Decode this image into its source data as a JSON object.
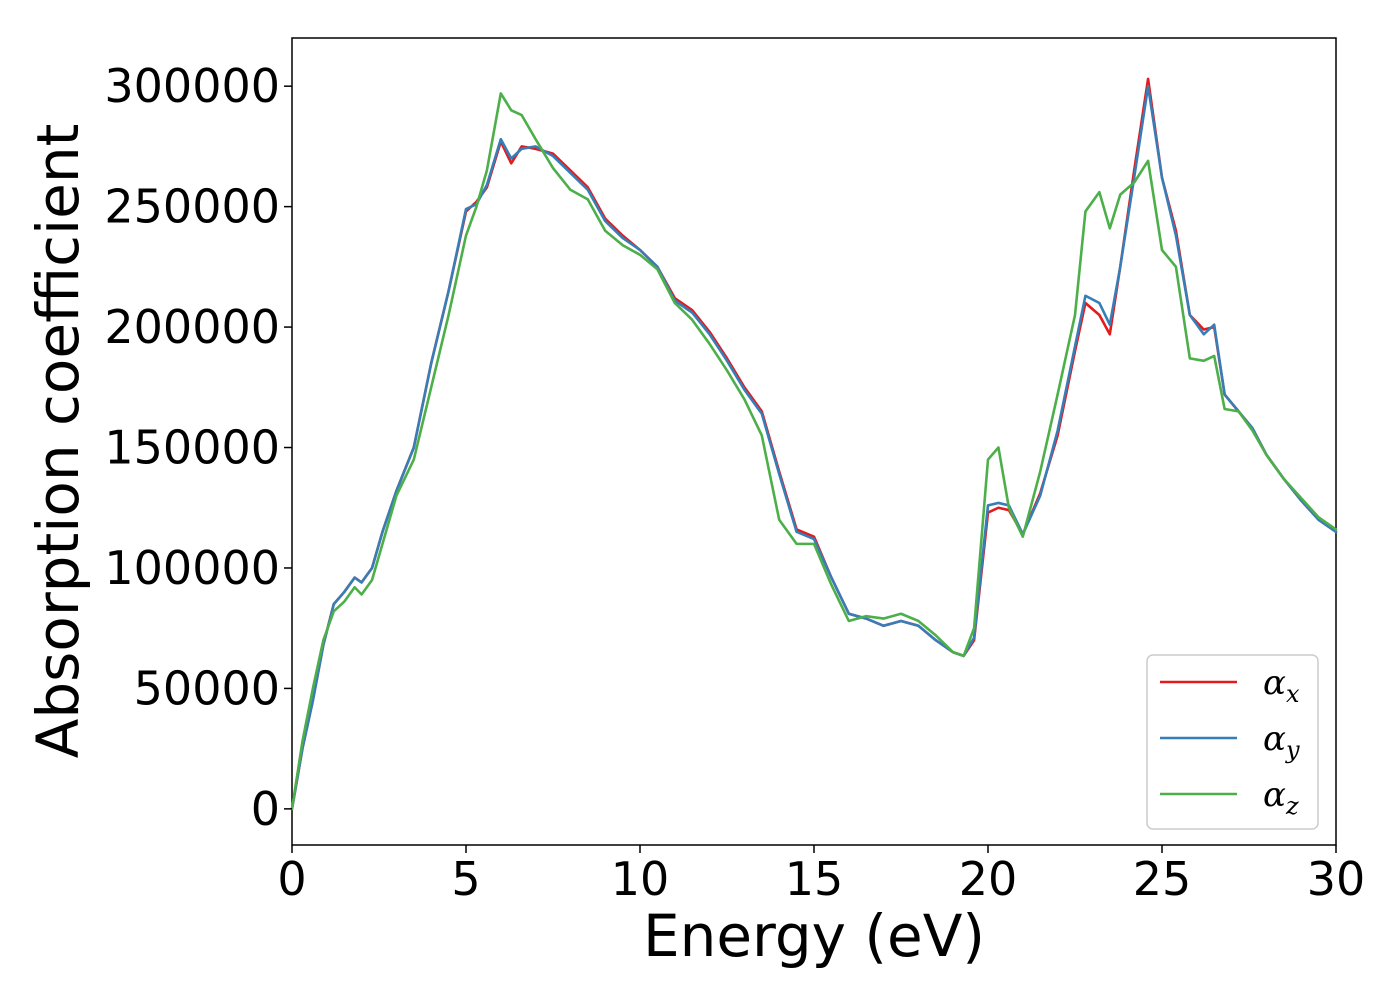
{
  "chart_data": {
    "type": "line",
    "title": "",
    "xlabel": "Energy (eV)",
    "ylabel": "Absorption coefficient",
    "xlim": [
      0,
      30
    ],
    "ylim": [
      -15000,
      320000
    ],
    "xticks": [
      0,
      5,
      10,
      15,
      20,
      25,
      30
    ],
    "xtick_labels": [
      "0",
      "5",
      "10",
      "15",
      "20",
      "25",
      "30"
    ],
    "yticks": [
      0,
      50000,
      100000,
      150000,
      200000,
      250000,
      300000
    ],
    "ytick_labels": [
      "0",
      "50000",
      "100000",
      "150000",
      "200000",
      "250000",
      "300000"
    ],
    "grid": false,
    "legend_position": "lower-right",
    "series": [
      {
        "name": "αx",
        "legend_base": "α",
        "legend_sub": "x",
        "color": "#e41a1c",
        "x": [
          0,
          0.3,
          0.6,
          0.9,
          1.2,
          1.5,
          1.8,
          2.0,
          2.3,
          2.6,
          3.0,
          3.5,
          4.0,
          4.5,
          5.0,
          5.3,
          5.6,
          6.0,
          6.3,
          6.6,
          7.0,
          7.5,
          8.0,
          8.5,
          9.0,
          9.5,
          10.0,
          10.5,
          11.0,
          11.5,
          12.0,
          12.5,
          13.0,
          13.5,
          14.0,
          14.5,
          15.0,
          15.5,
          16.0,
          16.5,
          17.0,
          17.5,
          18.0,
          18.5,
          19.0,
          19.3,
          19.6,
          20.0,
          20.3,
          20.6,
          21.0,
          21.5,
          22.0,
          22.5,
          22.8,
          23.2,
          23.5,
          23.8,
          24.2,
          24.6,
          25.0,
          25.4,
          25.8,
          26.2,
          26.5,
          26.8,
          27.2,
          27.6,
          28.0,
          28.5,
          29.0,
          29.5,
          30.0
        ],
        "y": [
          0,
          25000,
          45000,
          68000,
          85000,
          90000,
          96000,
          94000,
          100000,
          115000,
          132000,
          150000,
          185000,
          215000,
          248000,
          252000,
          258000,
          277000,
          268000,
          275000,
          274000,
          272000,
          265000,
          258000,
          245000,
          238000,
          232000,
          225000,
          212000,
          207000,
          198000,
          187000,
          175000,
          165000,
          140000,
          116000,
          113000,
          96000,
          81000,
          79000,
          76000,
          78000,
          76000,
          70000,
          65000,
          63500,
          70000,
          123000,
          125000,
          124000,
          114000,
          131000,
          155000,
          190000,
          210000,
          205000,
          197000,
          225000,
          265000,
          303000,
          262000,
          240000,
          205000,
          199000,
          200000,
          172000,
          165000,
          158000,
          147000,
          137000,
          128000,
          120000,
          115000
        ]
      },
      {
        "name": "αy",
        "legend_base": "α",
        "legend_sub": "y",
        "color": "#377eb8",
        "x": [
          0,
          0.3,
          0.6,
          0.9,
          1.2,
          1.5,
          1.8,
          2.0,
          2.3,
          2.6,
          3.0,
          3.5,
          4.0,
          4.5,
          5.0,
          5.3,
          5.6,
          6.0,
          6.3,
          6.6,
          7.0,
          7.5,
          8.0,
          8.5,
          9.0,
          9.5,
          10.0,
          10.5,
          11.0,
          11.5,
          12.0,
          12.5,
          13.0,
          13.5,
          14.0,
          14.5,
          15.0,
          15.5,
          16.0,
          16.5,
          17.0,
          17.5,
          18.0,
          18.5,
          19.0,
          19.3,
          19.6,
          20.0,
          20.3,
          20.6,
          21.0,
          21.5,
          22.0,
          22.5,
          22.8,
          23.2,
          23.5,
          23.8,
          24.2,
          24.6,
          25.0,
          25.4,
          25.8,
          26.2,
          26.5,
          26.8,
          27.2,
          27.6,
          28.0,
          28.5,
          29.0,
          29.5,
          30.0
        ],
        "y": [
          0,
          25000,
          45000,
          68000,
          85000,
          90000,
          96000,
          94000,
          100000,
          115000,
          132000,
          150000,
          185000,
          215000,
          249000,
          251000,
          259000,
          278000,
          270000,
          274000,
          275000,
          271000,
          264000,
          257000,
          244000,
          237000,
          232000,
          225000,
          211000,
          206000,
          197000,
          186000,
          174000,
          164000,
          139000,
          115000,
          112000,
          96000,
          81000,
          79000,
          76000,
          78000,
          76000,
          70000,
          65000,
          63500,
          71000,
          126000,
          127000,
          126000,
          114000,
          130000,
          157000,
          192000,
          213000,
          210000,
          201000,
          225000,
          262000,
          300000,
          262000,
          238000,
          205000,
          197000,
          201000,
          172000,
          165000,
          158000,
          147000,
          137000,
          128000,
          120000,
          115000
        ]
      },
      {
        "name": "αz",
        "legend_base": "α",
        "legend_sub": "z",
        "color": "#4daf4a",
        "x": [
          0,
          0.3,
          0.6,
          0.9,
          1.2,
          1.5,
          1.8,
          2.0,
          2.3,
          2.6,
          3.0,
          3.5,
          4.0,
          4.5,
          5.0,
          5.3,
          5.6,
          6.0,
          6.3,
          6.6,
          7.0,
          7.5,
          8.0,
          8.5,
          9.0,
          9.5,
          10.0,
          10.5,
          11.0,
          11.5,
          12.0,
          12.5,
          13.0,
          13.5,
          14.0,
          14.5,
          15.0,
          15.5,
          16.0,
          16.5,
          17.0,
          17.5,
          18.0,
          18.5,
          19.0,
          19.3,
          19.6,
          20.0,
          20.3,
          20.6,
          21.0,
          21.5,
          22.0,
          22.5,
          22.8,
          23.2,
          23.5,
          23.8,
          24.2,
          24.6,
          25.0,
          25.4,
          25.8,
          26.2,
          26.5,
          26.8,
          27.2,
          27.6,
          28.0,
          28.5,
          29.0,
          29.5,
          30.0
        ],
        "y": [
          0,
          28000,
          50000,
          70000,
          82000,
          86000,
          92000,
          89000,
          95000,
          110000,
          130000,
          145000,
          175000,
          205000,
          238000,
          250000,
          265000,
          297000,
          290000,
          288000,
          278000,
          266000,
          257000,
          253000,
          240000,
          234000,
          230000,
          224000,
          210000,
          203000,
          193000,
          182000,
          170000,
          155000,
          120000,
          110000,
          110000,
          93000,
          78000,
          80000,
          79000,
          81000,
          78000,
          72000,
          65000,
          63500,
          75000,
          145000,
          150000,
          125000,
          113000,
          140000,
          172000,
          205000,
          248000,
          256000,
          241000,
          255000,
          260000,
          269000,
          232000,
          225000,
          187000,
          186000,
          188000,
          166000,
          165000,
          157000,
          147000,
          137000,
          129000,
          121000,
          116000
        ]
      }
    ]
  }
}
